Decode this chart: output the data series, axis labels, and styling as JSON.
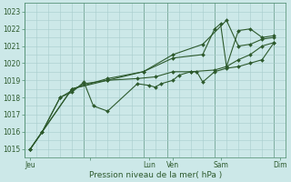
{
  "bg_color": "#cce8e8",
  "grid_minor_color": "#a8cccc",
  "grid_major_color": "#4a8a6a",
  "line_color": "#2d5a2d",
  "xlabel": "Pression niveau de la mer( hPa )",
  "ylim": [
    1014.5,
    1023.5
  ],
  "xlim": [
    0,
    22
  ],
  "yticks": [
    1015,
    1016,
    1017,
    1018,
    1019,
    1020,
    1021,
    1022,
    1023
  ],
  "xtick_positions": [
    0.5,
    5.5,
    10.5,
    12.5,
    16.5,
    21.5
  ],
  "xtick_labels": [
    "Jeu",
    "",
    "Lun",
    "Ven",
    "Sam",
    "Dim"
  ],
  "x_major_lines": [
    0,
    5,
    10,
    12,
    16,
    21,
    22
  ],
  "series": [
    {
      "x": [
        0.5,
        1.5,
        3,
        5,
        7,
        9.5,
        11,
        12.5,
        14,
        16,
        17,
        18,
        19,
        20,
        21
      ],
      "y": [
        1015.0,
        1016.0,
        1018.0,
        1018.8,
        1019.0,
        1019.1,
        1019.2,
        1019.5,
        1019.5,
        1019.6,
        1019.8,
        1020.2,
        1020.5,
        1021.0,
        1021.2
      ],
      "marker": "D",
      "markersize": 2.0,
      "linewidth": 0.8
    },
    {
      "x": [
        0.5,
        1.5,
        3,
        4,
        5,
        5.8,
        7,
        9.5,
        10.5,
        11,
        11.5,
        12.5,
        13,
        14,
        14.5,
        15,
        16,
        17,
        18,
        19,
        20,
        21
      ],
      "y": [
        1015.0,
        1016.0,
        1018.0,
        1018.3,
        1018.9,
        1017.5,
        1017.2,
        1018.8,
        1018.7,
        1018.6,
        1018.8,
        1019.0,
        1019.3,
        1019.5,
        1019.5,
        1018.9,
        1019.5,
        1019.7,
        1019.8,
        1020.0,
        1020.2,
        1021.2
      ],
      "marker": "D",
      "markersize": 2.0,
      "linewidth": 0.8
    },
    {
      "x": [
        0.5,
        4,
        7,
        10,
        12.5,
        15,
        16,
        16.5,
        17,
        18,
        19,
        20,
        21
      ],
      "y": [
        1015.0,
        1018.5,
        1019.0,
        1019.5,
        1020.3,
        1020.5,
        1022.0,
        1022.3,
        1019.8,
        1021.9,
        1022.0,
        1021.5,
        1021.6
      ],
      "marker": "D",
      "markersize": 2.0,
      "linewidth": 0.8
    },
    {
      "x": [
        0.5,
        4,
        7,
        10,
        12.5,
        15,
        17,
        18,
        19,
        20,
        21
      ],
      "y": [
        1015.0,
        1018.5,
        1019.1,
        1019.5,
        1020.5,
        1021.1,
        1022.5,
        1021.0,
        1021.1,
        1021.4,
        1021.5
      ],
      "marker": "D",
      "markersize": 2.0,
      "linewidth": 0.8
    }
  ]
}
